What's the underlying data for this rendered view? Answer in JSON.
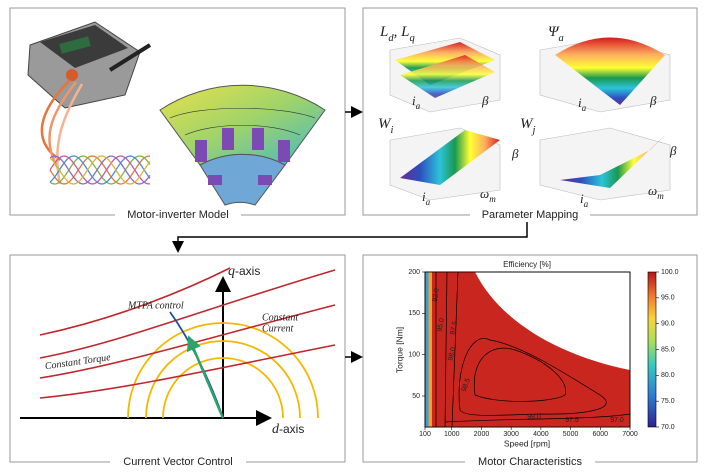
{
  "motor_inverter": {
    "caption": "Motor-inverter Model"
  },
  "parameter_mapping": {
    "caption": "Parameter Mapping",
    "plots": [
      {
        "title": [
          {
            "t": "L"
          },
          {
            "t": "d",
            "sub": true
          },
          {
            "t": ", L"
          },
          {
            "t": "q",
            "sub": true
          }
        ],
        "x_axis": [
          {
            "t": "i"
          },
          {
            "t": "a",
            "sub": true
          }
        ],
        "y_axis": [
          {
            "t": "β"
          }
        ]
      },
      {
        "title": [
          {
            "t": "Ψ"
          },
          {
            "t": "a",
            "sub": true
          }
        ],
        "x_axis": [
          {
            "t": "i"
          },
          {
            "t": "a",
            "sub": true
          }
        ],
        "y_axis": [
          {
            "t": "β"
          }
        ]
      },
      {
        "title": [
          {
            "t": "W"
          },
          {
            "t": "i",
            "sub": true
          }
        ],
        "x_axis": [
          {
            "t": "i"
          },
          {
            "t": "a",
            "sub": true
          }
        ],
        "y_axis": [
          {
            "t": "ω"
          },
          {
            "t": "m",
            "sub": true
          }
        ],
        "z_axis": [
          {
            "t": "β"
          }
        ]
      },
      {
        "title": [
          {
            "t": "W"
          },
          {
            "t": "j",
            "sub": true
          }
        ],
        "x_axis": [
          {
            "t": "i"
          },
          {
            "t": "a",
            "sub": true
          }
        ],
        "y_axis": [
          {
            "t": "ω"
          },
          {
            "t": "m",
            "sub": true
          }
        ],
        "z_axis": [
          {
            "t": "β"
          }
        ]
      }
    ]
  },
  "current_vector_control": {
    "caption": "Current Vector Control",
    "q_axis": [
      {
        "t": "q",
        "italic": true
      },
      {
        "t": "-axis"
      }
    ],
    "d_axis": [
      {
        "t": "d",
        "italic": true
      },
      {
        "t": "-axis"
      }
    ],
    "mtpa": "MTPA control",
    "constant_torque": "Constant Torque",
    "constant_current": [
      "Constant",
      "Current"
    ]
  },
  "motor_characteristics": {
    "caption": "Motor Characteristics",
    "title": "Efficiency [%]",
    "x_label": "Speed [rpm]",
    "y_label": "Torque [Nm]",
    "xticks": [
      100,
      1000,
      2000,
      3000,
      4000,
      5000,
      6000,
      7000
    ],
    "yticks": [
      50,
      100,
      150,
      200
    ],
    "colorbar_ticks": [
      {
        "value": 70,
        "label": "70.0"
      },
      {
        "value": 75,
        "label": "75.0"
      },
      {
        "value": 80,
        "label": "80.0"
      },
      {
        "value": 85,
        "label": "85.0"
      },
      {
        "value": 90,
        "label": "90.0"
      },
      {
        "value": 95,
        "label": "95.0"
      },
      {
        "value": 100,
        "label": "100.0"
      }
    ],
    "contour_labels": [
      "92.0",
      "95.0",
      "97.5",
      "98.0",
      "98.5",
      "98.0",
      "97.5",
      "97.0"
    ]
  }
}
